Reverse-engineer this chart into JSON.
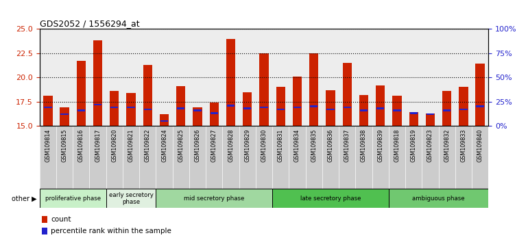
{
  "title": "GDS2052 / 1556294_at",
  "samples": [
    "GSM109814",
    "GSM109815",
    "GSM109816",
    "GSM109817",
    "GSM109820",
    "GSM109821",
    "GSM109822",
    "GSM109824",
    "GSM109825",
    "GSM109826",
    "GSM109827",
    "GSM109828",
    "GSM109829",
    "GSM109830",
    "GSM109831",
    "GSM109834",
    "GSM109835",
    "GSM109836",
    "GSM109837",
    "GSM109838",
    "GSM109839",
    "GSM109818",
    "GSM109819",
    "GSM109823",
    "GSM109832",
    "GSM109833",
    "GSM109840"
  ],
  "count_values": [
    18.1,
    16.9,
    21.7,
    23.8,
    18.6,
    18.4,
    21.3,
    16.2,
    19.1,
    16.9,
    17.4,
    24.0,
    18.5,
    22.5,
    19.0,
    20.1,
    22.5,
    18.7,
    21.5,
    18.2,
    19.2,
    18.1,
    16.4,
    16.3,
    18.6,
    19.0,
    21.4
  ],
  "percentile_values": [
    16.9,
    16.2,
    16.6,
    17.2,
    16.9,
    16.9,
    16.7,
    15.5,
    16.8,
    16.6,
    16.3,
    17.1,
    16.8,
    16.9,
    16.7,
    16.9,
    17.0,
    16.7,
    16.9,
    16.6,
    16.8,
    16.6,
    16.3,
    16.2,
    16.6,
    16.7,
    17.0
  ],
  "phases": [
    {
      "label": "proliferative phase",
      "start": 0,
      "end": 4,
      "color": "#c8f0c8"
    },
    {
      "label": "early secretory\nphase",
      "start": 4,
      "end": 7,
      "color": "#e0f0e0"
    },
    {
      "label": "mid secretory phase",
      "start": 7,
      "end": 14,
      "color": "#a0d8a0"
    },
    {
      "label": "late secretory phase",
      "start": 14,
      "end": 21,
      "color": "#50c050"
    },
    {
      "label": "ambiguous phase",
      "start": 21,
      "end": 27,
      "color": "#70c870"
    }
  ],
  "ymin": 15,
  "ymax": 25,
  "yticks": [
    15,
    17.5,
    20,
    22.5,
    25
  ],
  "right_yticks": [
    0,
    25,
    50,
    75,
    100
  ],
  "bar_color": "#cc2200",
  "percentile_color": "#2222cc",
  "bg_color": "#ffffff",
  "tick_color_left": "#cc2200",
  "tick_color_right": "#2222cc",
  "grid_color": "#000000",
  "label_bg_color": "#cccccc"
}
